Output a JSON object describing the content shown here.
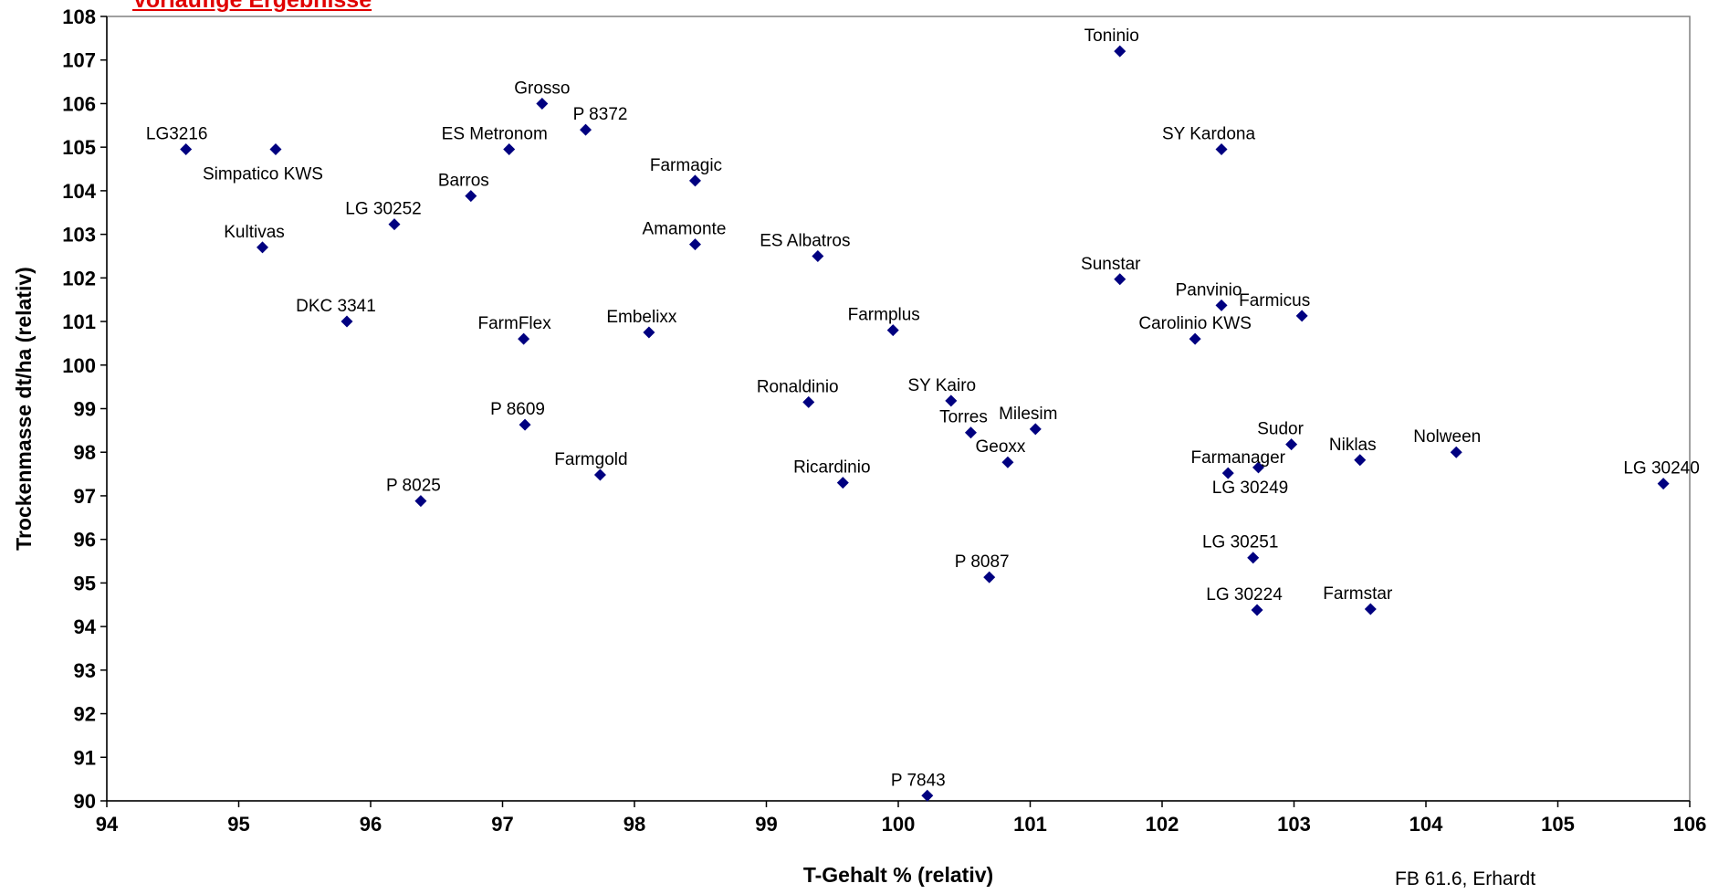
{
  "header": {
    "title": "Vorläufige Ergebnisse"
  },
  "footer": {
    "source": "FB 61.6, Erhardt"
  },
  "colors": {
    "marker": "#000080",
    "plot_border": "#808080",
    "title": "#e00000"
  },
  "chart_data": {
    "type": "scatter",
    "xlabel": "T-Gehalt % (relativ)",
    "ylabel": "Trockenmasse dt/ha (relativ)",
    "xlim": [
      94,
      106
    ],
    "ylim": [
      90,
      108
    ],
    "x_ticks": [
      "94",
      "95",
      "96",
      "97",
      "98",
      "99",
      "100",
      "101",
      "102",
      "103",
      "104",
      "105",
      "106"
    ],
    "y_ticks": [
      "90",
      "91",
      "92",
      "93",
      "94",
      "95",
      "96",
      "97",
      "98",
      "99",
      "100",
      "101",
      "102",
      "103",
      "104",
      "105",
      "106",
      "107",
      "108"
    ],
    "grid": false,
    "legend": "none",
    "points": [
      {
        "label": "LG3216",
        "x": 94.6,
        "y": 104.95
      },
      {
        "label": "Simpatico KWS",
        "x": 95.28,
        "y": 104.95
      },
      {
        "label": "Kultivas",
        "x": 95.18,
        "y": 102.7
      },
      {
        "label": "DKC 3341",
        "x": 95.82,
        "y": 101.0
      },
      {
        "label": "LG 30252",
        "x": 96.18,
        "y": 103.23
      },
      {
        "label": "P 8025",
        "x": 96.38,
        "y": 96.88
      },
      {
        "label": "Barros",
        "x": 96.76,
        "y": 103.88
      },
      {
        "label": "ES Metronom",
        "x": 97.05,
        "y": 104.95
      },
      {
        "label": "FarmFlex",
        "x": 97.16,
        "y": 100.6
      },
      {
        "label": "P 8609",
        "x": 97.17,
        "y": 98.63
      },
      {
        "label": "Grosso",
        "x": 97.3,
        "y": 106.0
      },
      {
        "label": "P 8372",
        "x": 97.63,
        "y": 105.4
      },
      {
        "label": "Farmgold",
        "x": 97.74,
        "y": 97.48
      },
      {
        "label": "Embelixx",
        "x": 98.11,
        "y": 100.75
      },
      {
        "label": "Farmagic",
        "x": 98.46,
        "y": 104.23
      },
      {
        "label": "Amamonte",
        "x": 98.46,
        "y": 102.77
      },
      {
        "label": "Ronaldinio",
        "x": 99.32,
        "y": 99.15
      },
      {
        "label": "ES Albatros",
        "x": 99.39,
        "y": 102.5
      },
      {
        "label": "Ricardinio",
        "x": 99.58,
        "y": 97.3
      },
      {
        "label": "Farmplus",
        "x": 99.96,
        "y": 100.8
      },
      {
        "label": "P 7843",
        "x": 100.22,
        "y": 90.12
      },
      {
        "label": "SY Kairo",
        "x": 100.4,
        "y": 99.18
      },
      {
        "label": "Torres",
        "x": 100.55,
        "y": 98.45
      },
      {
        "label": "P 8087",
        "x": 100.69,
        "y": 95.13
      },
      {
        "label": "Geoxx",
        "x": 100.83,
        "y": 97.77
      },
      {
        "label": "Milesim",
        "x": 101.04,
        "y": 98.53
      },
      {
        "label": "Toninio",
        "x": 101.68,
        "y": 107.2
      },
      {
        "label": "Sunstar",
        "x": 101.68,
        "y": 101.97
      },
      {
        "label": "Carolinio KWS",
        "x": 102.25,
        "y": 100.6
      },
      {
        "label": "SY Kardona",
        "x": 102.45,
        "y": 104.95
      },
      {
        "label": "Panvinio",
        "x": 102.45,
        "y": 101.37
      },
      {
        "label": "Farmanager",
        "x": 102.5,
        "y": 97.52
      },
      {
        "label": "LG 30251",
        "x": 102.69,
        "y": 95.58
      },
      {
        "label": "LG 30224",
        "x": 102.72,
        "y": 94.38
      },
      {
        "label": "LG 30249",
        "x": 102.73,
        "y": 97.65
      },
      {
        "label": "Sudor",
        "x": 102.98,
        "y": 98.18
      },
      {
        "label": "Farmicus",
        "x": 103.06,
        "y": 101.13
      },
      {
        "label": "Niklas",
        "x": 103.5,
        "y": 97.82
      },
      {
        "label": "Farmstar",
        "x": 103.58,
        "y": 94.4
      },
      {
        "label": "Nolween",
        "x": 104.23,
        "y": 98.0
      },
      {
        "label": "LG 30240",
        "x": 105.8,
        "y": 97.28
      }
    ]
  }
}
